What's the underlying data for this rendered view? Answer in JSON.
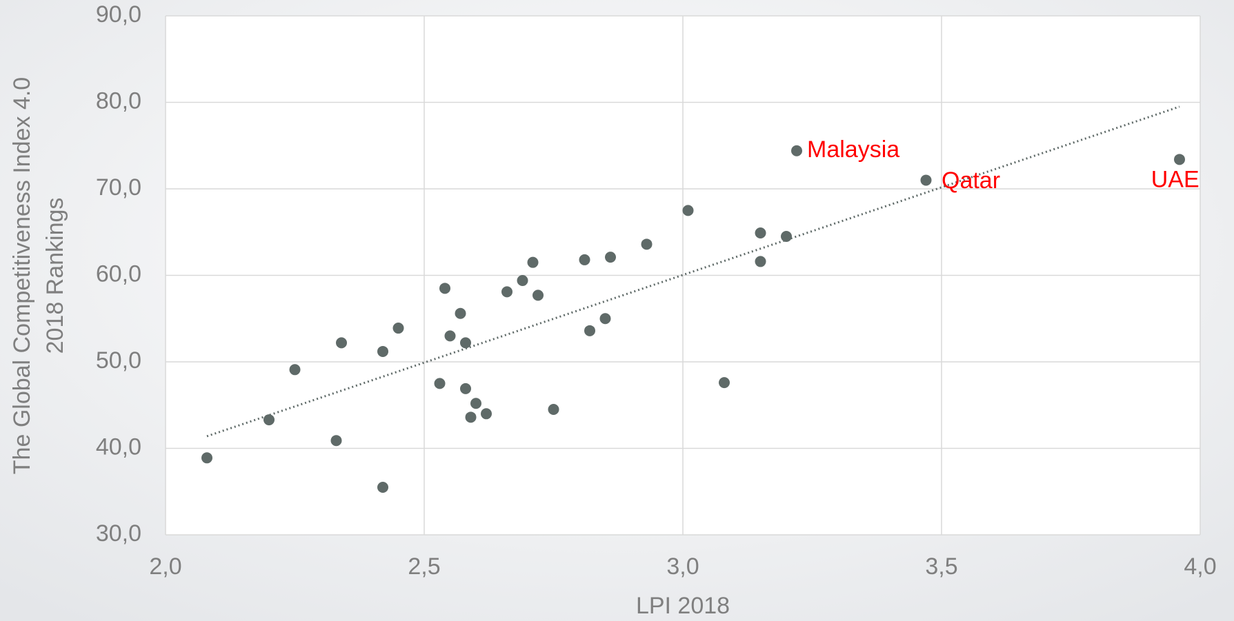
{
  "chart_data": {
    "type": "scatter",
    "xlabel": "LPI 2018",
    "ylabel": [
      "The Global Competitiveness Index 4.0",
      "2018 Rankings"
    ],
    "xlim": [
      2.0,
      4.0
    ],
    "ylim": [
      30,
      90
    ],
    "xticks": [
      {
        "value": 2.0,
        "label": "2,0"
      },
      {
        "value": 2.5,
        "label": "2,5"
      },
      {
        "value": 3.0,
        "label": "3,0"
      },
      {
        "value": 3.5,
        "label": "3,5"
      },
      {
        "value": 4.0,
        "label": "4,0"
      }
    ],
    "yticks": [
      {
        "value": 30,
        "label": "30,0"
      },
      {
        "value": 40,
        "label": "40,0"
      },
      {
        "value": 50,
        "label": "50,0"
      },
      {
        "value": 60,
        "label": "60,0"
      },
      {
        "value": 70,
        "label": "70,0"
      },
      {
        "value": 80,
        "label": "80,0"
      },
      {
        "value": 90,
        "label": "90,0"
      }
    ],
    "grid": true,
    "color": "#5f6a68",
    "x": [
      2.08,
      2.2,
      2.25,
      2.33,
      2.34,
      2.42,
      2.42,
      2.45,
      2.53,
      2.54,
      2.55,
      2.57,
      2.58,
      2.58,
      2.6,
      2.59,
      2.62,
      2.66,
      2.69,
      2.71,
      2.72,
      2.75,
      2.81,
      2.82,
      2.85,
      2.86,
      2.93,
      3.01,
      3.08,
      3.15,
      3.15,
      3.2,
      3.22,
      3.47,
      3.96
    ],
    "values": [
      38.9,
      43.3,
      49.1,
      40.9,
      52.2,
      51.2,
      35.5,
      53.9,
      47.5,
      58.5,
      53.0,
      55.6,
      52.2,
      46.9,
      45.2,
      43.6,
      44.0,
      58.1,
      59.4,
      61.5,
      57.7,
      44.5,
      61.8,
      53.6,
      55.0,
      62.1,
      63.6,
      67.5,
      47.6,
      64.9,
      61.6,
      64.5,
      74.4,
      71.0,
      73.4
    ],
    "trendline": {
      "color": "#5f6a68",
      "x": [
        2.08,
        3.96
      ],
      "values": [
        41.4,
        79.5
      ]
    },
    "annotations": [
      {
        "text": "Malaysia",
        "x": 3.24,
        "y": 74.4,
        "color": "#ff0000"
      },
      {
        "text": "Qatar",
        "x": 3.5,
        "y": 70.8,
        "color": "#ff0000"
      },
      {
        "text": "UAE",
        "x": 3.905,
        "y": 70.9,
        "color": "#ff0000"
      }
    ]
  }
}
